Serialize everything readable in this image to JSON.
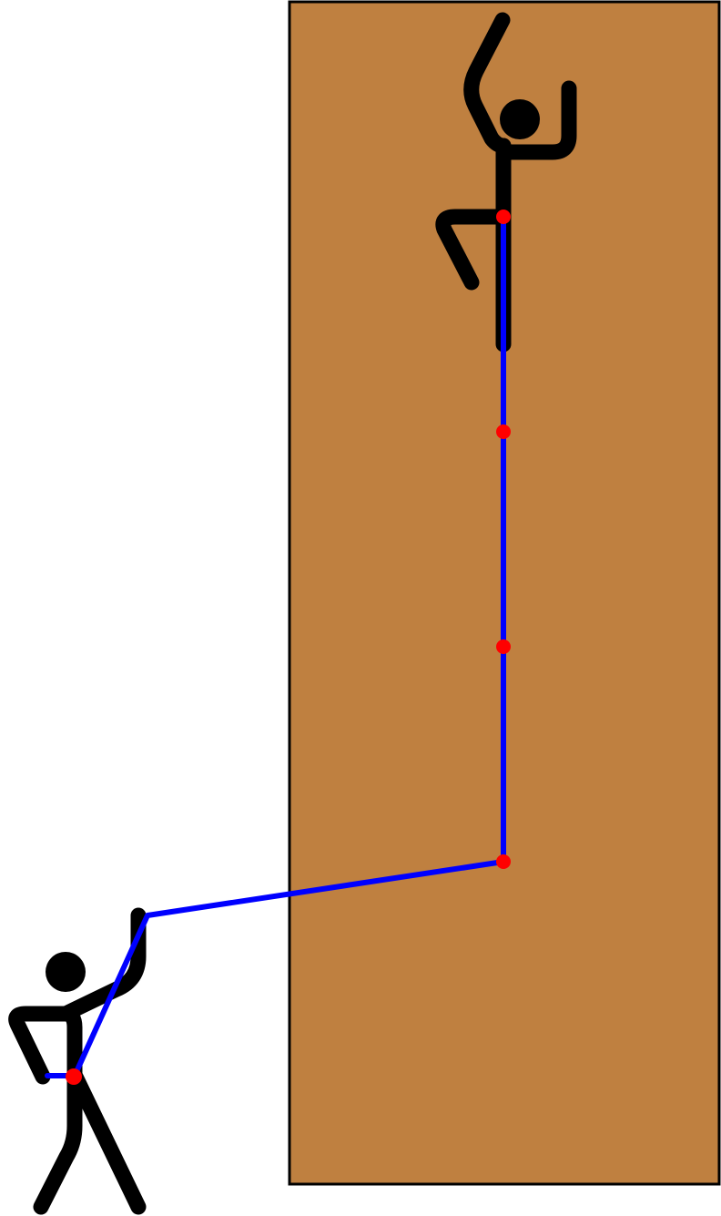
{
  "colors": {
    "background": "#ffffff",
    "wall_fill": "#bf8040",
    "wall_stroke": "#000000",
    "figure": "#000000",
    "rope": "#0000ff",
    "protection_point": "#ff0000"
  },
  "figures": {
    "climber": "stick-figure-climber",
    "belayer": "stick-figure-belayer"
  },
  "rope": {
    "protection_points": 4,
    "anchor_points": 1
  }
}
